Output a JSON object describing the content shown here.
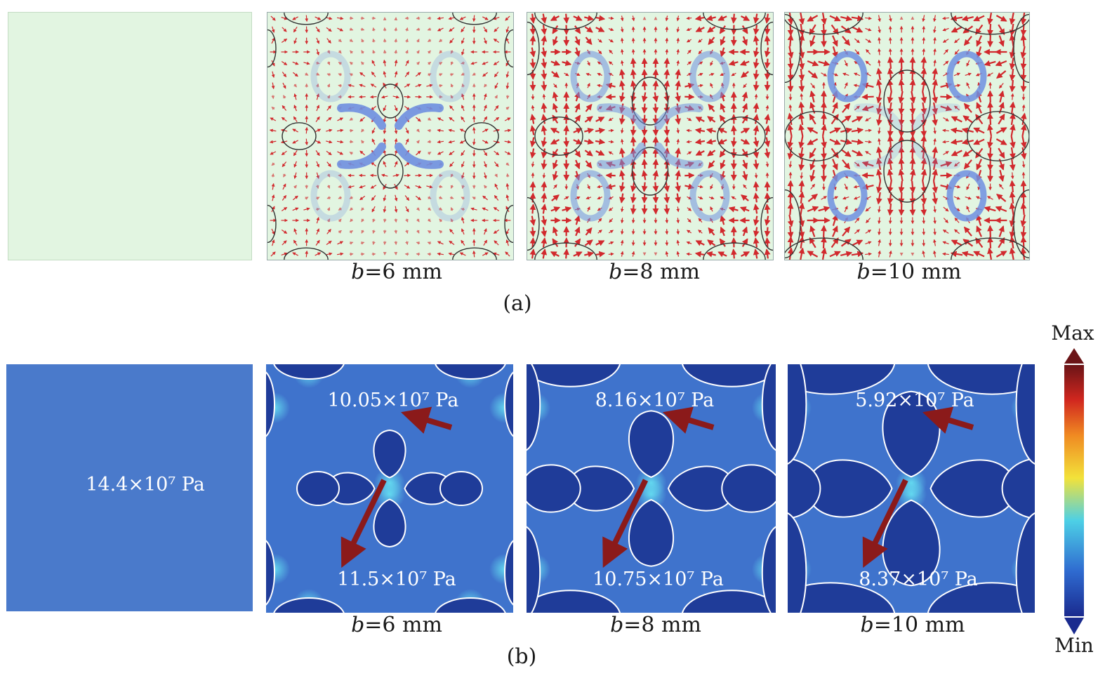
{
  "row_a": {
    "captions": [
      {
        "var": "b",
        "rest": "=6 mm"
      },
      {
        "var": "b",
        "rest": "=8 mm"
      },
      {
        "var": "b",
        "rest": "=10 mm"
      }
    ],
    "label": "(a)"
  },
  "row_b": {
    "reference_value": "14.4×10⁷ Pa",
    "values": [
      {
        "top": "10.05×10⁷ Pa",
        "bottom": "11.5×10⁷ Pa"
      },
      {
        "top": "8.16×10⁷ Pa",
        "bottom": "10.75×10⁷ Pa"
      },
      {
        "top": "5.92×10⁷ Pa",
        "bottom": "8.37×10⁷ Pa"
      }
    ],
    "captions": [
      {
        "var": "b",
        "rest": "=6 mm"
      },
      {
        "var": "b",
        "rest": "=8 mm"
      },
      {
        "var": "b",
        "rest": "=10 mm"
      }
    ],
    "label": "(b)"
  },
  "colorbar": {
    "max_label": "Max",
    "min_label": "Min",
    "colors": [
      "#1a2b8f",
      "#2f6bd0",
      "#4dd0e6",
      "#f2e23a",
      "#f08a22",
      "#d1271f",
      "#6b1417"
    ]
  },
  "colors": {
    "panel_a_bg": "#e2f5e1",
    "panel_b_bg": "#3f73cc",
    "hole_fill": "#1f3c99",
    "vector_red": "#d11f24",
    "rotation_blue": "#6f8fe0",
    "indicator_arrow": "#8b1a1a"
  }
}
